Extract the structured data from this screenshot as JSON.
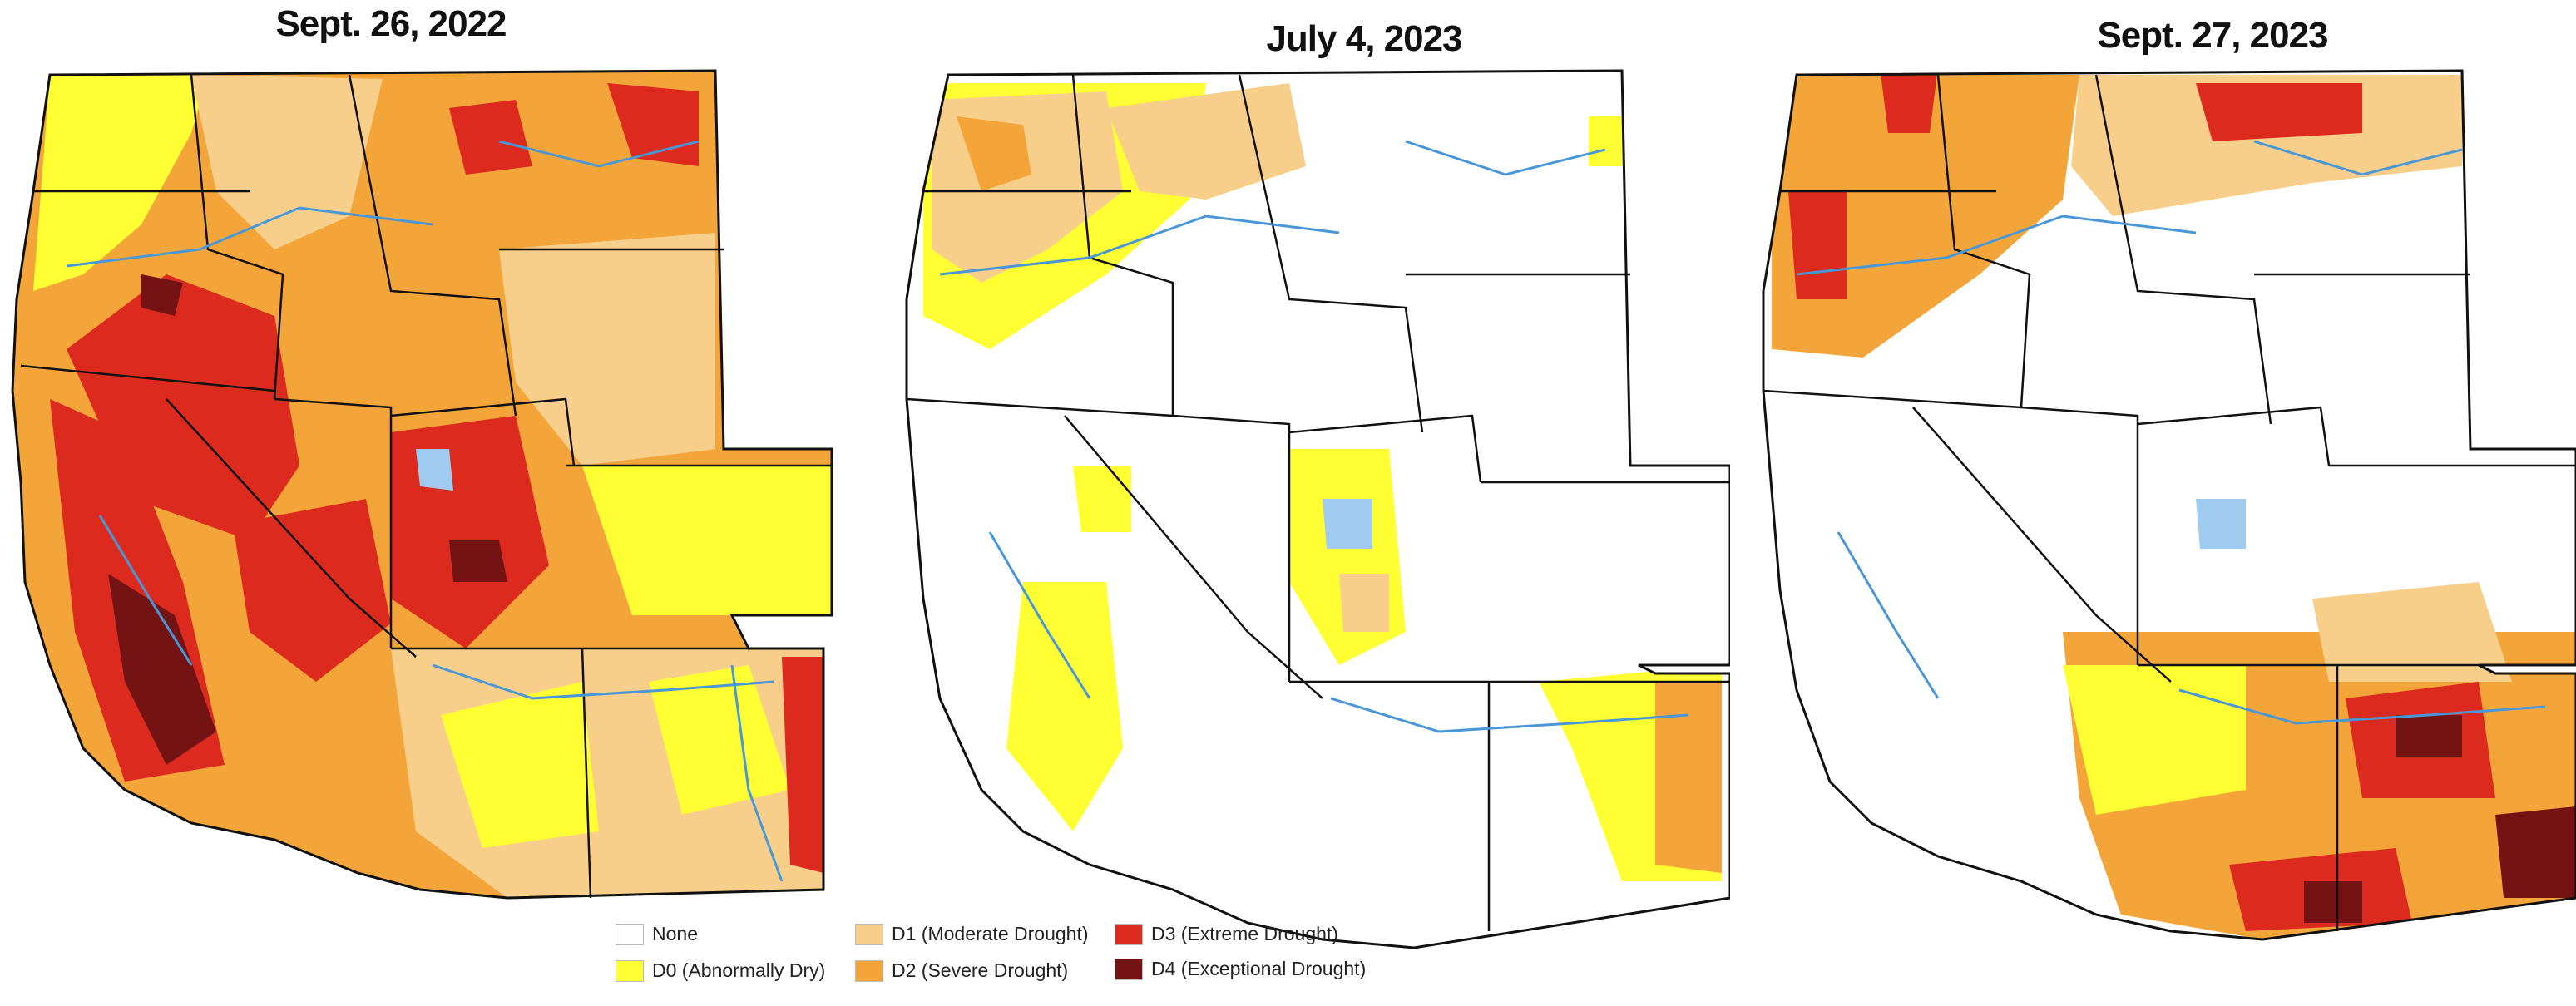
{
  "maps": [
    {
      "title": "Sept. 26, 2022",
      "base_fill": "#f6a54a"
    },
    {
      "title": "July 4, 2023",
      "base_fill": "#ffffff"
    },
    {
      "title": "Sept. 27, 2023",
      "base_fill": "#ffffff"
    }
  ],
  "legend": [
    {
      "code": "none",
      "label": "None",
      "color": "#ffffff"
    },
    {
      "code": "D0",
      "label": "D0 (Abnormally Dry)",
      "color": "#ffff33"
    },
    {
      "code": "D1",
      "label": "D1 (Moderate Drought)",
      "color": "#f7cf8a"
    },
    {
      "code": "D2",
      "label": "D2 (Severe Drought)",
      "color": "#f4a53a"
    },
    {
      "code": "D3",
      "label": "D3 (Extreme Drought)",
      "color": "#dd2a1f"
    },
    {
      "code": "D4",
      "label": "D4 (Exceptional Drought)",
      "color": "#731313"
    }
  ],
  "colors": {
    "border": "#111111",
    "water": "#4a97d8",
    "lake": "#9fcbf0"
  }
}
